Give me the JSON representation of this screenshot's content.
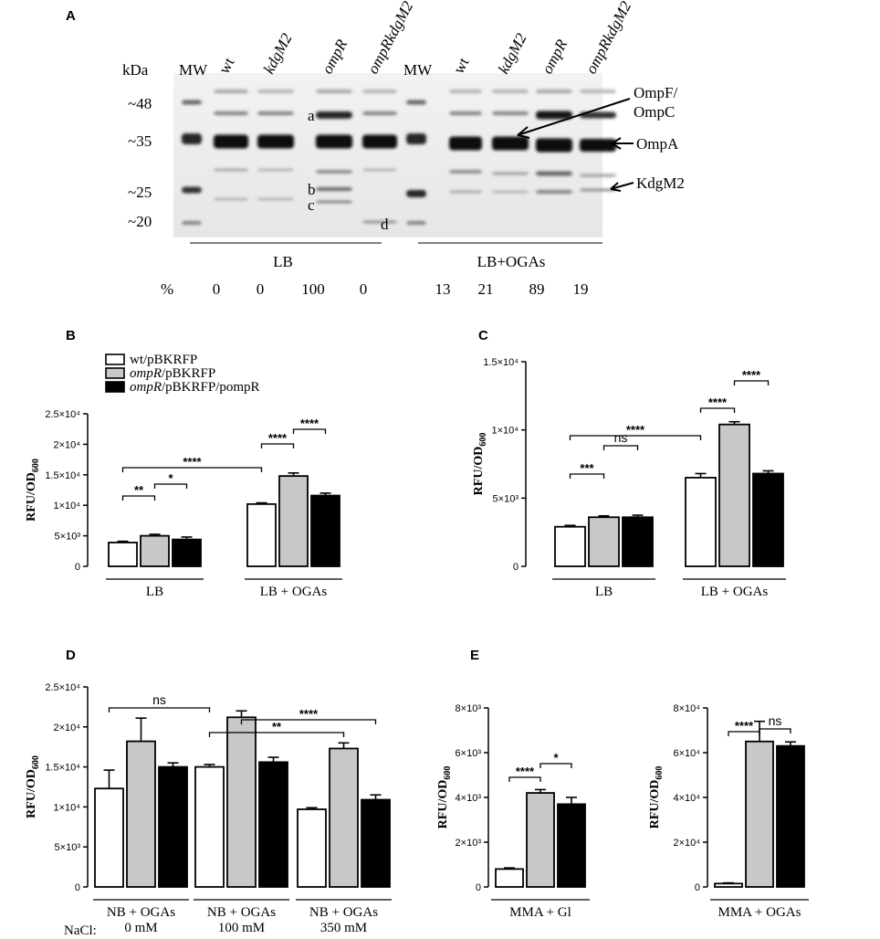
{
  "panel_a": {
    "letter": "A",
    "kda_label": "kDa",
    "lanes": [
      {
        "label": "MW",
        "italic": false
      },
      {
        "label": "wt",
        "italic": false
      },
      {
        "label": "kdgM2",
        "italic": true
      },
      {
        "label": "ompR",
        "italic": true
      },
      {
        "label": "ompRkdgM2",
        "italic": true
      },
      {
        "label": "MW",
        "italic": false
      },
      {
        "label": "wt",
        "italic": false
      },
      {
        "label": "kdgM2",
        "italic": true
      },
      {
        "label": "ompR",
        "italic": true
      },
      {
        "label": "ompRkdgM2",
        "italic": true
      }
    ],
    "markers": [
      "~48",
      "~35",
      "~25",
      "~20"
    ],
    "band_letters": [
      "a",
      "b",
      "c",
      "d"
    ],
    "annotations": [
      "OmpF/",
      "OmpC",
      "OmpA",
      "KdgM2"
    ],
    "groups": [
      "LB",
      "LB+OGAs"
    ],
    "percent_label": "%",
    "percent_values": [
      "0",
      "0",
      "100",
      "0",
      "13",
      "21",
      "89",
      "19"
    ]
  },
  "legend": [
    {
      "pre": "wt",
      "pre_italic": false,
      "post": "/pBKRFP",
      "color": "#ffffff"
    },
    {
      "pre": "ompR",
      "pre_italic": true,
      "post": "/pBKRFP",
      "color": "#c8c8c8"
    },
    {
      "pre": "ompR",
      "pre_italic": true,
      "post": "/pBKRFP/pompR",
      "color": "#000000"
    }
  ],
  "nacl_label": "NaCl:",
  "chart_data": [
    {
      "panel": "B",
      "type": "bar",
      "ylabel": "RFU/OD600",
      "ylim": [
        0,
        25000
      ],
      "yticks": [
        "0",
        "5×10³",
        "1×10⁴",
        "1.5×10⁴",
        "2×10⁴",
        "2.5×10⁴"
      ],
      "categories": [
        "LB",
        "LB + OGAs"
      ],
      "series": [
        {
          "name": "wt/pBKRFP",
          "values": [
            3900,
            10200
          ],
          "errors": [
            200,
            200
          ]
        },
        {
          "name": "ompR/pBKRFP",
          "values": [
            5000,
            14800
          ],
          "errors": [
            250,
            500
          ]
        },
        {
          "name": "ompR/pBKRFP/pompR",
          "values": [
            4400,
            11600
          ],
          "errors": [
            400,
            400
          ]
        }
      ],
      "significance": [
        "**",
        "*",
        "****",
        "****",
        "****"
      ]
    },
    {
      "panel": "C",
      "type": "bar",
      "ylabel": "RFU/OD600",
      "ylim": [
        0,
        15000
      ],
      "yticks": [
        "0",
        "5×10³",
        "1×10⁴",
        "1.5×10⁴"
      ],
      "categories": [
        "LB",
        "LB + OGAs"
      ],
      "series": [
        {
          "name": "wt/pBKRFP",
          "values": [
            2900,
            6500
          ],
          "errors": [
            100,
            300
          ]
        },
        {
          "name": "ompR/pBKRFP",
          "values": [
            3600,
            10400
          ],
          "errors": [
            100,
            200
          ]
        },
        {
          "name": "ompR/pBKRFP/pompR",
          "values": [
            3600,
            6800
          ],
          "errors": [
            150,
            200
          ]
        }
      ],
      "significance": [
        "***",
        "ns",
        "****",
        "****",
        "****"
      ]
    },
    {
      "panel": "D",
      "type": "bar",
      "ylabel": "RFU/OD600",
      "ylim": [
        0,
        25000
      ],
      "yticks": [
        "0",
        "5×10³",
        "1×10⁴",
        "1.5×10⁴",
        "2×10⁴",
        "2.5×10⁴"
      ],
      "categories": [
        "NB + OGAs",
        "NB + OGAs",
        "NB + OGAs"
      ],
      "category_sub": [
        "0 mM",
        "100 mM",
        "350 mM"
      ],
      "series": [
        {
          "name": "wt/pBKRFP",
          "values": [
            12300,
            15000,
            9700
          ],
          "errors": [
            2300,
            300,
            200
          ]
        },
        {
          "name": "ompR/pBKRFP",
          "values": [
            18200,
            21200,
            17300
          ],
          "errors": [
            2900,
            800,
            700
          ]
        },
        {
          "name": "ompR/pBKRFP/pompR",
          "values": [
            15000,
            15600,
            10900
          ],
          "errors": [
            500,
            600,
            600
          ]
        }
      ],
      "significance": [
        "ns",
        "****",
        "**"
      ]
    },
    {
      "panel": "E1",
      "type": "bar",
      "ylabel": "RFU/OD600",
      "ylim": [
        0,
        8000
      ],
      "yticks": [
        "0",
        "2×10³",
        "4×10³",
        "6×10³",
        "8×10³"
      ],
      "categories": [
        "MMA + Gl"
      ],
      "series": [
        {
          "name": "wt/pBKRFP",
          "values": [
            800
          ],
          "errors": [
            50
          ]
        },
        {
          "name": "ompR/pBKRFP",
          "values": [
            4200
          ],
          "errors": [
            150
          ]
        },
        {
          "name": "ompR/pBKRFP/pompR",
          "values": [
            3700
          ],
          "errors": [
            300
          ]
        }
      ],
      "significance": [
        "****",
        "*"
      ]
    },
    {
      "panel": "E2",
      "type": "bar",
      "ylabel": "RFU/OD600",
      "ylim": [
        0,
        80000
      ],
      "yticks": [
        "0",
        "2×10⁴",
        "4×10⁴",
        "6×10⁴",
        "8×10⁴"
      ],
      "categories": [
        "MMA + OGAs"
      ],
      "series": [
        {
          "name": "wt/pBKRFP",
          "values": [
            1500
          ],
          "errors": [
            300
          ]
        },
        {
          "name": "ompR/pBKRFP",
          "values": [
            65000
          ],
          "errors": [
            9000
          ]
        },
        {
          "name": "ompR/pBKRFP/pompR",
          "values": [
            63000
          ],
          "errors": [
            1800
          ]
        }
      ],
      "significance": [
        "****",
        "ns"
      ]
    }
  ]
}
